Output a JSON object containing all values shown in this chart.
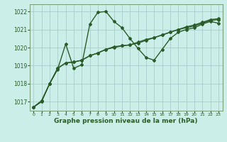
{
  "title": "Graphe pression niveau de la mer (hPa)",
  "background_color": "#cceee8",
  "grid_color": "#aacccc",
  "line_color": "#2a5c2a",
  "xlim": [
    -0.5,
    23.5
  ],
  "ylim": [
    1016.5,
    1022.4
  ],
  "yticks": [
    1017,
    1018,
    1019,
    1020,
    1021,
    1022
  ],
  "xticks": [
    0,
    1,
    2,
    3,
    4,
    5,
    6,
    7,
    8,
    9,
    10,
    11,
    12,
    13,
    14,
    15,
    16,
    17,
    18,
    19,
    20,
    21,
    22,
    23
  ],
  "line1_x": [
    0,
    1,
    2,
    3,
    4,
    5,
    6,
    7,
    8,
    9,
    10,
    11,
    12,
    13,
    14,
    15,
    16,
    17,
    18,
    19,
    20,
    21,
    22,
    23
  ],
  "line1_y": [
    1016.7,
    1017.0,
    1018.0,
    1018.8,
    1020.2,
    1018.85,
    1019.05,
    1021.3,
    1021.95,
    1022.0,
    1021.45,
    1021.1,
    1020.5,
    1019.95,
    1019.45,
    1019.3,
    1019.9,
    1020.5,
    1020.85,
    1021.0,
    1021.1,
    1021.3,
    1021.45,
    1021.35
  ],
  "line2_x": [
    0,
    1,
    2,
    3,
    4,
    5,
    6,
    7,
    8,
    9,
    10,
    11,
    12,
    13,
    14,
    15,
    16,
    17,
    18,
    19,
    20,
    21,
    22,
    23
  ],
  "line2_y": [
    1016.7,
    1017.05,
    1018.0,
    1018.85,
    1019.15,
    1019.2,
    1019.3,
    1019.55,
    1019.7,
    1019.9,
    1020.0,
    1020.1,
    1020.15,
    1020.25,
    1020.4,
    1020.55,
    1020.7,
    1020.85,
    1021.0,
    1021.1,
    1021.2,
    1021.35,
    1021.5,
    1021.55
  ],
  "line3_x": [
    0,
    1,
    2,
    3,
    4,
    5,
    6,
    7,
    8,
    9,
    10,
    11,
    12,
    13,
    14,
    15,
    16,
    17,
    18,
    19,
    20,
    21,
    22,
    23
  ],
  "line3_y": [
    1016.7,
    1017.05,
    1018.0,
    1018.85,
    1019.15,
    1019.2,
    1019.3,
    1019.55,
    1019.7,
    1019.9,
    1020.05,
    1020.1,
    1020.15,
    1020.3,
    1020.45,
    1020.55,
    1020.7,
    1020.85,
    1021.0,
    1021.15,
    1021.25,
    1021.4,
    1021.55,
    1021.6
  ]
}
